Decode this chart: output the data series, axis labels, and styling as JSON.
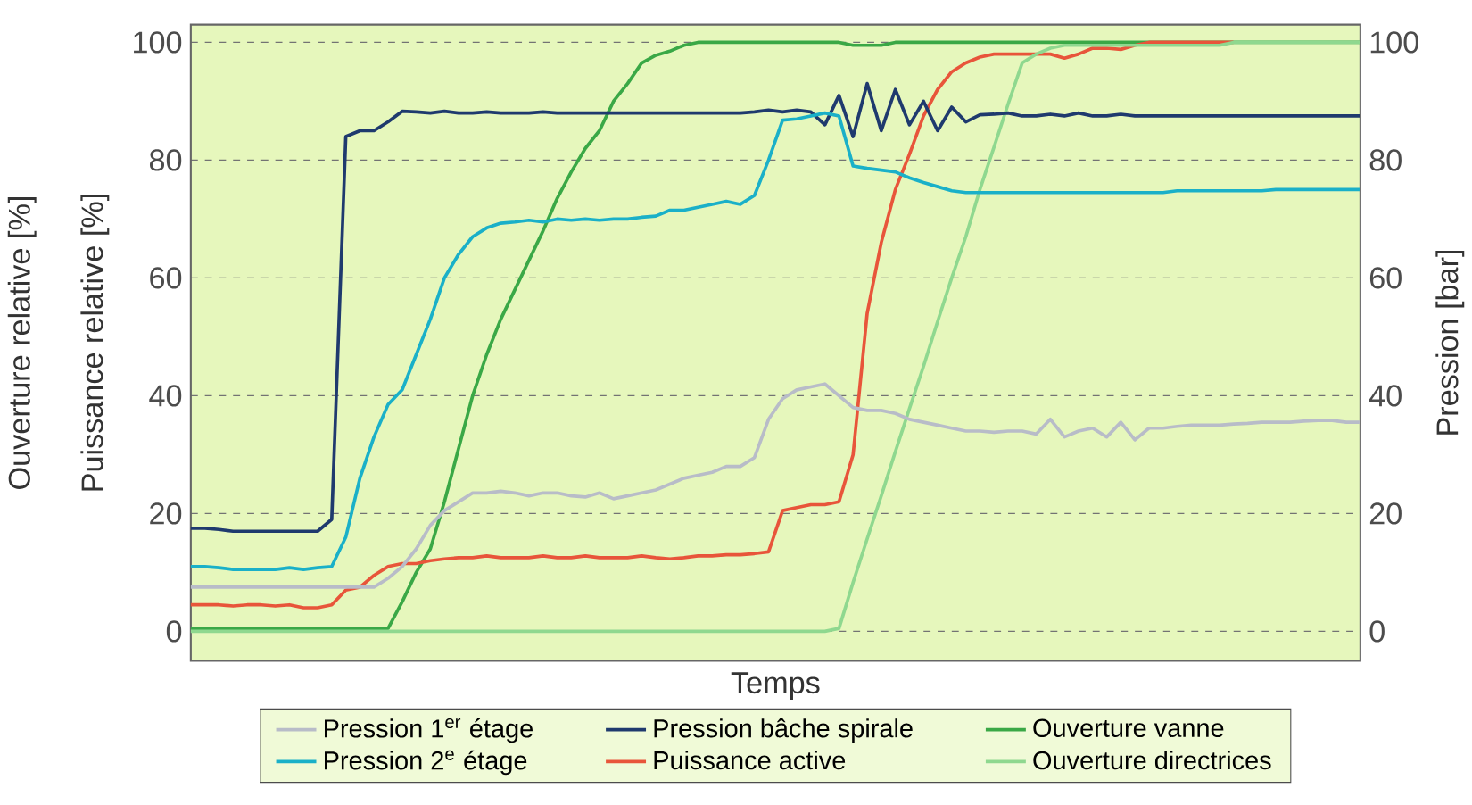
{
  "chart_data": {
    "type": "line",
    "xlabel": "Temps",
    "ylabel": "Ouverture relative [%]",
    "y2label": "Pression [bar]",
    "annotations": [
      "Puissance relative [%]"
    ],
    "categories": [
      null,
      null,
      null,
      null,
      null,
      null,
      null,
      null,
      null,
      null,
      null,
      null,
      null,
      null,
      null,
      null,
      null,
      null,
      null,
      null,
      null,
      null,
      null,
      null,
      null,
      null,
      null,
      null,
      null,
      null,
      null,
      null,
      null,
      null,
      null,
      null,
      null,
      null,
      null,
      null,
      null,
      null,
      null,
      null,
      null,
      null,
      null,
      null,
      null,
      null,
      null,
      null,
      null,
      null,
      null,
      null,
      null,
      null,
      null,
      null,
      null,
      null,
      null,
      null,
      null,
      null,
      null,
      null,
      null,
      null,
      null,
      null,
      null,
      null,
      null,
      null,
      null,
      null,
      null,
      null,
      null,
      null,
      null,
      null
    ],
    "ylim": [
      -5,
      103
    ],
    "yticks": [
      0,
      20,
      40,
      60,
      80,
      100
    ],
    "y2lim": [
      -5,
      103
    ],
    "y2ticks": [
      0,
      20,
      40,
      60,
      80,
      100
    ],
    "grid": "y",
    "legend": "bottom",
    "tick_labels": "y",
    "line_style": "solid",
    "series": [
      {
        "name": "Pression 1$^{er}$ étage",
        "color": "#b8bcc8",
        "axis": "y2",
        "values": [
          7.5,
          7.5,
          7.5,
          7.5,
          7.5,
          7.5,
          7.5,
          7.5,
          7.5,
          7.5,
          7.5,
          7.5,
          7.5,
          7.5,
          9,
          11,
          14,
          18,
          20.5,
          22,
          23.5,
          23.5,
          23.8,
          23.5,
          23,
          23.5,
          23.5,
          23,
          22.8,
          23.5,
          22.5,
          23,
          23.5,
          24,
          25,
          26,
          26.5,
          27,
          28,
          28,
          29.5,
          36,
          39.5,
          41,
          41.5,
          42,
          40,
          38,
          37.5,
          37.5,
          37,
          36,
          35.5,
          35,
          34.5,
          34,
          34,
          33.8,
          34,
          34,
          33.5,
          36,
          33,
          34,
          34.5,
          33,
          35.5,
          32.5,
          34.5,
          34.5,
          34.8,
          35,
          35,
          35,
          35.2,
          35.3,
          35.5,
          35.5,
          35.5,
          35.7,
          35.8,
          35.8,
          35.5,
          35.5
        ]
      },
      {
        "name": "Pression bâche spirale",
        "color": "#1f3a6e",
        "axis": "y2",
        "values": [
          17.5,
          17.5,
          17.3,
          17,
          17,
          17,
          17,
          17,
          17,
          17,
          19,
          84,
          85,
          85,
          86.5,
          88.3,
          88.2,
          88,
          88.3,
          88,
          88,
          88.2,
          88,
          88,
          88,
          88.2,
          88,
          88,
          88,
          88,
          88,
          88,
          88,
          88,
          88,
          88,
          88,
          88,
          88,
          88,
          88.2,
          88.5,
          88.2,
          88.5,
          88.2,
          86,
          91,
          84,
          93,
          85,
          92,
          86,
          90,
          85,
          89,
          86.5,
          87.7,
          87.8,
          88,
          87.5,
          87.5,
          87.8,
          87.5,
          88,
          87.5,
          87.5,
          87.8,
          87.5,
          87.5,
          87.5,
          87.5,
          87.5,
          87.5,
          87.5,
          87.5,
          87.5,
          87.5,
          87.5,
          87.5,
          87.5,
          87.5,
          87.5,
          87.5,
          87.5
        ]
      },
      {
        "name": "Ouverture vanne",
        "color": "#3aa846",
        "values": [
          0.5,
          0.5,
          0.5,
          0.5,
          0.5,
          0.5,
          0.5,
          0.5,
          0.5,
          0.5,
          0.5,
          0.5,
          0.5,
          0.5,
          0.5,
          5,
          10,
          14,
          22,
          31,
          40,
          47,
          53,
          58,
          63,
          68,
          73.5,
          78,
          82,
          85,
          90,
          93,
          96.5,
          97.8,
          98.5,
          99.5,
          100,
          100,
          100,
          100,
          100,
          100,
          100,
          100,
          100,
          100,
          100,
          99.5,
          99.5,
          99.5,
          100,
          100,
          100,
          100,
          100,
          100,
          100,
          100,
          100,
          100,
          100,
          100,
          100,
          100,
          100,
          100,
          100,
          100,
          100,
          100,
          100,
          100,
          100,
          100,
          100,
          100,
          100,
          100,
          100,
          100,
          100,
          100,
          100,
          100
        ]
      },
      {
        "name": "Pression 2$^{e}$ étage",
        "color": "#1ab0c8",
        "axis": "y2",
        "values": [
          11,
          11,
          10.8,
          10.5,
          10.5,
          10.5,
          10.5,
          10.8,
          10.5,
          10.8,
          11,
          16,
          26,
          33,
          38.5,
          41,
          47,
          53,
          60,
          64,
          67,
          68.5,
          69.3,
          69.5,
          69.8,
          69.5,
          70,
          69.8,
          70,
          69.8,
          70,
          70,
          70.3,
          70.5,
          71.5,
          71.5,
          72,
          72.5,
          73,
          72.5,
          74,
          80,
          86.8,
          87,
          87.5,
          88,
          87.5,
          79,
          78.6,
          78.3,
          78,
          77,
          76.2,
          75.5,
          74.8,
          74.5,
          74.5,
          74.5,
          74.5,
          74.5,
          74.5,
          74.5,
          74.5,
          74.5,
          74.5,
          74.5,
          74.5,
          74.5,
          74.5,
          74.5,
          74.8,
          74.8,
          74.8,
          74.8,
          74.8,
          74.8,
          74.8,
          75,
          75,
          75,
          75,
          75,
          75,
          75
        ]
      },
      {
        "name": "Puissance active",
        "color": "#e8553a",
        "values": [
          4.5,
          4.5,
          4.5,
          4.3,
          4.5,
          4.5,
          4.3,
          4.5,
          4,
          4,
          4.5,
          7,
          7.5,
          9.5,
          11,
          11.5,
          11.5,
          12,
          12.3,
          12.5,
          12.5,
          12.8,
          12.5,
          12.5,
          12.5,
          12.8,
          12.5,
          12.5,
          12.8,
          12.5,
          12.5,
          12.5,
          12.8,
          12.5,
          12.3,
          12.5,
          12.8,
          12.8,
          13,
          13,
          13.2,
          13.5,
          20.5,
          21,
          21.5,
          21.5,
          22,
          30,
          54,
          66,
          75,
          81,
          87.5,
          92,
          95,
          96.5,
          97.5,
          98,
          98,
          98,
          98,
          98,
          97.3,
          98,
          99,
          99,
          98.8,
          99.5,
          100,
          100,
          100,
          100,
          100,
          100,
          100,
          null,
          null,
          null,
          null,
          null,
          null,
          null,
          null,
          null
        ]
      },
      {
        "name": "Ouverture directrices",
        "color": "#8fd88f",
        "values": [
          0,
          0,
          0,
          0,
          0,
          0,
          0,
          0,
          0,
          0,
          0,
          0,
          0,
          0,
          0,
          0,
          0,
          0,
          0,
          0,
          0,
          0,
          0,
          0,
          0,
          0,
          0,
          0,
          0,
          0,
          0,
          0,
          0,
          0,
          0,
          0,
          0,
          0,
          0,
          0,
          0,
          0,
          0,
          0,
          0,
          0,
          0.5,
          8.3,
          15.7,
          23,
          30.5,
          37.8,
          45,
          52.6,
          60,
          67,
          75,
          82.2,
          89.5,
          96.5,
          98,
          99,
          99.5,
          99.5,
          99.5,
          99.5,
          99.5,
          99.5,
          99.5,
          99.5,
          99.5,
          99.5,
          99.5,
          99.5,
          100,
          100,
          100,
          100,
          100,
          100,
          100,
          100,
          100,
          100
        ]
      }
    ]
  }
}
